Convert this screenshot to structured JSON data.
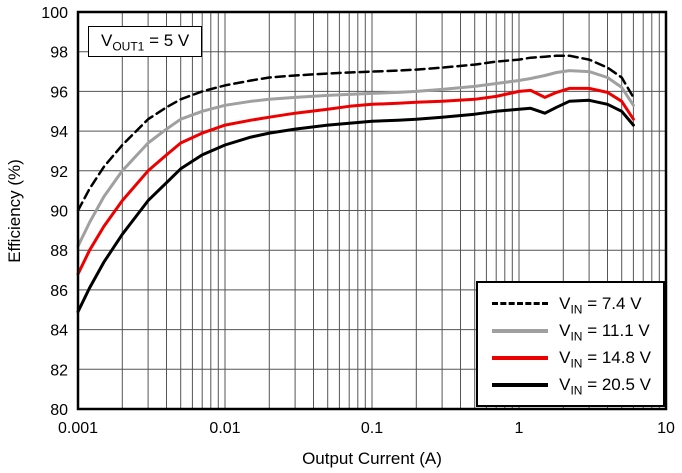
{
  "chart_data": {
    "type": "line",
    "title": "",
    "xlabel": "Output Current (A)",
    "ylabel": "Efficiency (%)",
    "x_scale": "log",
    "xlim": [
      0.001,
      10
    ],
    "ylim": [
      80,
      100
    ],
    "x_ticks": [
      {
        "value": 0.001,
        "label": "0.001"
      },
      {
        "value": 0.01,
        "label": "0.01"
      },
      {
        "value": 0.1,
        "label": "0.1"
      },
      {
        "value": 1,
        "label": "1"
      },
      {
        "value": 10,
        "label": "10"
      }
    ],
    "y_ticks": [
      80,
      82,
      84,
      86,
      88,
      90,
      92,
      94,
      96,
      98,
      100
    ],
    "grid": {
      "horizontal": "every 2",
      "vertical": "log minor lines",
      "color": "#555555"
    },
    "annotation": {
      "pre": "V",
      "sub": "OUT1",
      "post": " = 5 V"
    },
    "legend_position": "bottom-right",
    "x": [
      0.001,
      0.0012,
      0.0015,
      0.002,
      0.003,
      0.004,
      0.005,
      0.007,
      0.01,
      0.015,
      0.02,
      0.03,
      0.05,
      0.07,
      0.1,
      0.15,
      0.2,
      0.3,
      0.5,
      0.7,
      1.0,
      1.2,
      1.5,
      1.8,
      2.2,
      3.0,
      4.0,
      5.0,
      6.0
    ],
    "series": [
      {
        "id": "vin-7p4",
        "name": "VIN = 7.4 V",
        "label_pre": "V",
        "label_sub": "IN",
        "label_post": " = 7.4 V",
        "color": "#000000",
        "dash": true,
        "width": 2.5,
        "y": [
          90.0,
          91.1,
          92.2,
          93.3,
          94.6,
          95.2,
          95.6,
          96.0,
          96.3,
          96.55,
          96.7,
          96.8,
          96.9,
          96.95,
          97.0,
          97.05,
          97.1,
          97.2,
          97.35,
          97.5,
          97.6,
          97.7,
          97.75,
          97.8,
          97.8,
          97.6,
          97.2,
          96.7,
          95.7
        ]
      },
      {
        "id": "vin-11p1",
        "name": "VIN = 11.1 V",
        "label_pre": "V",
        "label_sub": "IN",
        "label_post": " = 11.1 V",
        "color": "#a0a0a0",
        "dash": false,
        "width": 3,
        "y": [
          88.2,
          89.4,
          90.7,
          92.0,
          93.4,
          94.1,
          94.6,
          95.0,
          95.3,
          95.5,
          95.6,
          95.7,
          95.8,
          95.85,
          95.9,
          95.95,
          96.0,
          96.1,
          96.25,
          96.4,
          96.55,
          96.65,
          96.8,
          96.95,
          97.05,
          97.0,
          96.7,
          96.2,
          95.3
        ]
      },
      {
        "id": "vin-14p8",
        "name": "VIN = 14.8 V",
        "label_pre": "V",
        "label_sub": "IN",
        "label_post": " = 14.8 V",
        "color": "#ee0000",
        "dash": false,
        "width": 3,
        "y": [
          86.8,
          88.0,
          89.2,
          90.5,
          92.0,
          92.8,
          93.4,
          93.9,
          94.3,
          94.55,
          94.7,
          94.9,
          95.1,
          95.25,
          95.35,
          95.4,
          95.45,
          95.5,
          95.6,
          95.75,
          96.0,
          96.05,
          95.7,
          95.95,
          96.15,
          96.15,
          95.95,
          95.5,
          94.6
        ]
      },
      {
        "id": "vin-20p5",
        "name": "VIN = 20.5 V",
        "label_pre": "V",
        "label_sub": "IN",
        "label_post": " = 20.5 V",
        "color": "#000000",
        "dash": false,
        "width": 3,
        "y": [
          84.9,
          86.1,
          87.4,
          88.8,
          90.5,
          91.4,
          92.1,
          92.8,
          93.3,
          93.7,
          93.9,
          94.1,
          94.3,
          94.4,
          94.5,
          94.55,
          94.6,
          94.7,
          94.85,
          95.0,
          95.1,
          95.15,
          94.9,
          95.2,
          95.5,
          95.55,
          95.35,
          95.0,
          94.3
        ]
      }
    ]
  }
}
